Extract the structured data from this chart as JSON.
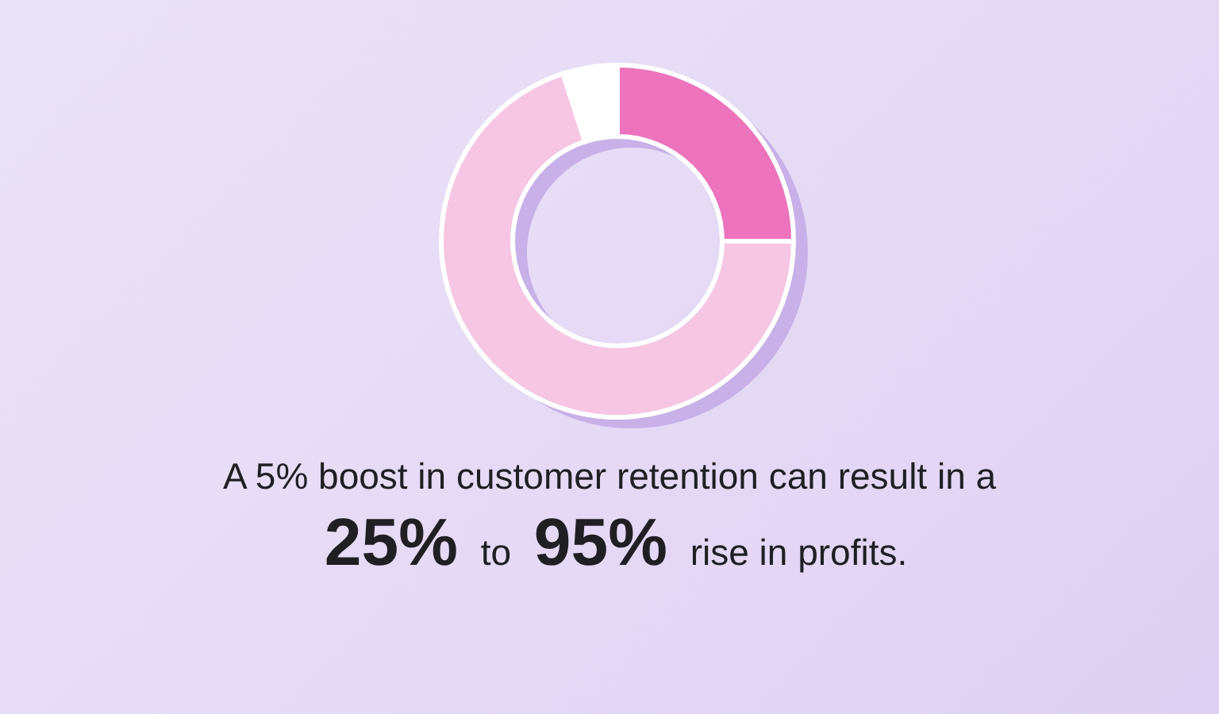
{
  "chart_data": {
    "type": "donut",
    "title": "A 5% boost in customer retention can result in a",
    "subtitle": "25% to 95% rise in profits.",
    "categories": [
      null,
      null,
      null
    ],
    "values": [
      25,
      70,
      5
    ],
    "colors": [
      "#ec73bc",
      "#f6c6e3",
      "#ffffff"
    ]
  }
}
